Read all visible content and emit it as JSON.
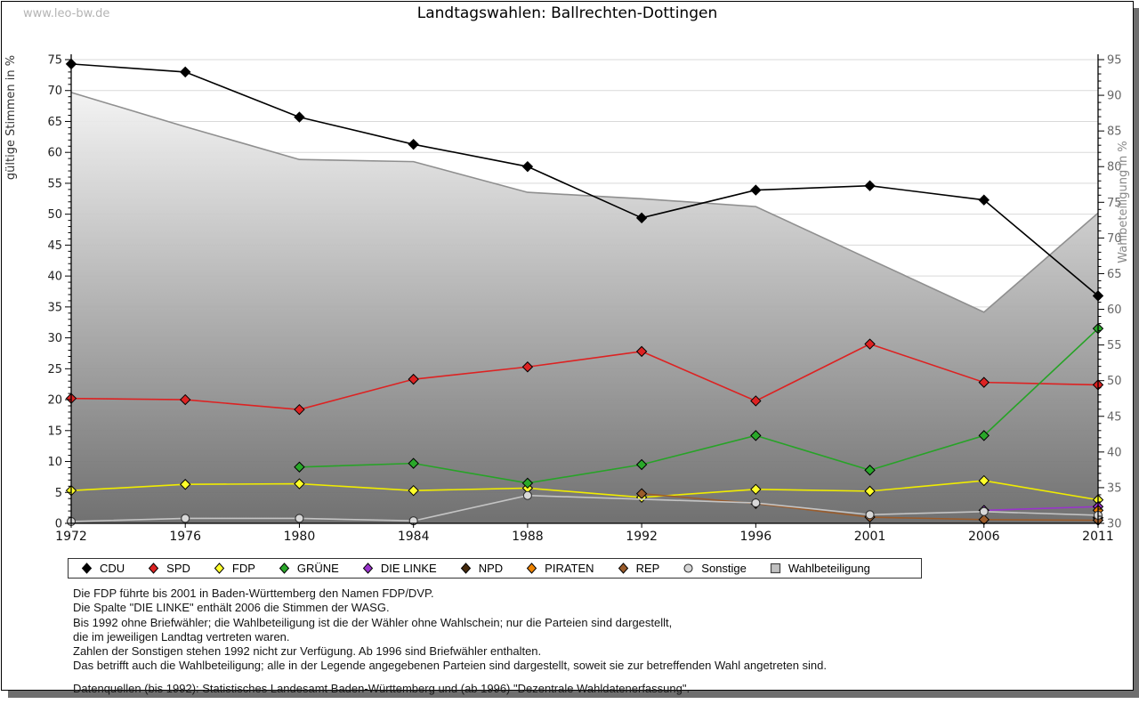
{
  "watermark": "www.leo-bw.de",
  "title": "Landtagswahlen: Ballrechten-Dottingen",
  "chart_data": {
    "type": "line",
    "title": "Landtagswahlen: Ballrechten-Dottingen",
    "x": [
      1972,
      1976,
      1980,
      1984,
      1988,
      1992,
      1996,
      2001,
      2006,
      2011
    ],
    "ylabel_left": "gültige Stimmen in %",
    "ylabel_right": "Wahlbeteiligung in %",
    "ylim_left": [
      0,
      75
    ],
    "ylim_right": [
      30,
      95
    ],
    "ytick_step": 5,
    "grid": true,
    "legend_position": "bottom",
    "series": [
      {
        "name": "CDU",
        "axis": "left",
        "marker": "diamond",
        "color": "#000000",
        "fill": "#000000",
        "values": [
          74.3,
          73.0,
          65.7,
          61.3,
          57.7,
          49.4,
          53.9,
          54.6,
          52.3,
          36.8
        ]
      },
      {
        "name": "SPD",
        "axis": "left",
        "marker": "diamond",
        "color": "#dd2222",
        "fill": "#dd2222",
        "values": [
          20.2,
          20.0,
          18.4,
          23.3,
          25.3,
          27.8,
          19.8,
          29.0,
          22.8,
          22.4
        ]
      },
      {
        "name": "FDP",
        "axis": "left",
        "marker": "diamond",
        "color": "#f0ec00",
        "fill": "#ffff2a",
        "values": [
          5.3,
          6.3,
          6.4,
          5.3,
          5.7,
          4.2,
          5.5,
          5.2,
          6.9,
          3.8
        ]
      },
      {
        "name": "GRÜNE",
        "axis": "left",
        "marker": "diamond",
        "color": "#27a327",
        "fill": "#2aa82a",
        "values": [
          null,
          null,
          9.1,
          9.7,
          6.5,
          9.5,
          14.2,
          8.6,
          14.2,
          31.5
        ]
      },
      {
        "name": "DIE LINKE",
        "axis": "left",
        "marker": "diamond",
        "color": "#9933cc",
        "fill": "#9933cc",
        "values": [
          null,
          null,
          null,
          null,
          null,
          null,
          null,
          null,
          2.1,
          2.7
        ]
      },
      {
        "name": "NPD",
        "axis": "left",
        "marker": "diamond",
        "color": "#452a0d",
        "fill": "#452a0d",
        "values": [
          null,
          null,
          null,
          null,
          null,
          null,
          null,
          null,
          null,
          0.9
        ]
      },
      {
        "name": "PIRATEN",
        "axis": "left",
        "marker": "diamond",
        "color": "#ee8300",
        "fill": "#ee8300",
        "values": [
          null,
          null,
          null,
          null,
          null,
          null,
          null,
          null,
          null,
          2.1
        ]
      },
      {
        "name": "REP",
        "axis": "left",
        "marker": "diamond",
        "color": "#9b5c2b",
        "fill": "#9b5c2b",
        "values": [
          null,
          null,
          null,
          null,
          null,
          4.8,
          3.2,
          1.0,
          0.6,
          0.5
        ]
      },
      {
        "name": "Sonstige",
        "axis": "left",
        "marker": "circle",
        "color": "#c4c4c4",
        "fill": "#d8d8d8",
        "values": [
          0.3,
          0.8,
          0.8,
          0.4,
          4.5,
          null,
          3.3,
          1.4,
          1.9,
          1.3
        ]
      },
      {
        "name": "Wahlbeteiligung",
        "axis": "right",
        "type": "area",
        "marker": "square",
        "color": "#8f8f8f",
        "fill": "#c0c0c0",
        "gradient": [
          "#fdfdfd",
          "#696969"
        ],
        "values": [
          90.4,
          85.6,
          81.0,
          80.7,
          76.4,
          75.5,
          74.4,
          67.0,
          59.6,
          73.5
        ]
      }
    ]
  },
  "footnotes": {
    "lines": [
      "Die FDP führte bis 2001 in Baden-Württemberg den Namen FDP/DVP.",
      "Die Spalte \"DIE LINKE\" enthält 2006 die Stimmen der WASG.",
      "Bis 1992 ohne Briefwähler; die Wahlbeteiligung ist die der Wähler ohne Wahlschein; nur die Parteien sind dargestellt,",
      "die im jeweiligen Landtag vertreten waren.",
      "Zahlen der Sonstigen stehen 1992 nicht zur Verfügung. Ab 1996 sind Briefwähler enthalten.",
      "Das betrifft auch die Wahlbeteiligung; alle in der Legende angegebenen Parteien sind dargestellt, soweit sie zur betreffenden Wahl angetreten sind."
    ],
    "source": "Datenquellen (bis 1992): Statistisches Landesamt Baden-Württemberg und (ab 1996) \"Dezentrale Wahldatenerfassung\"."
  }
}
